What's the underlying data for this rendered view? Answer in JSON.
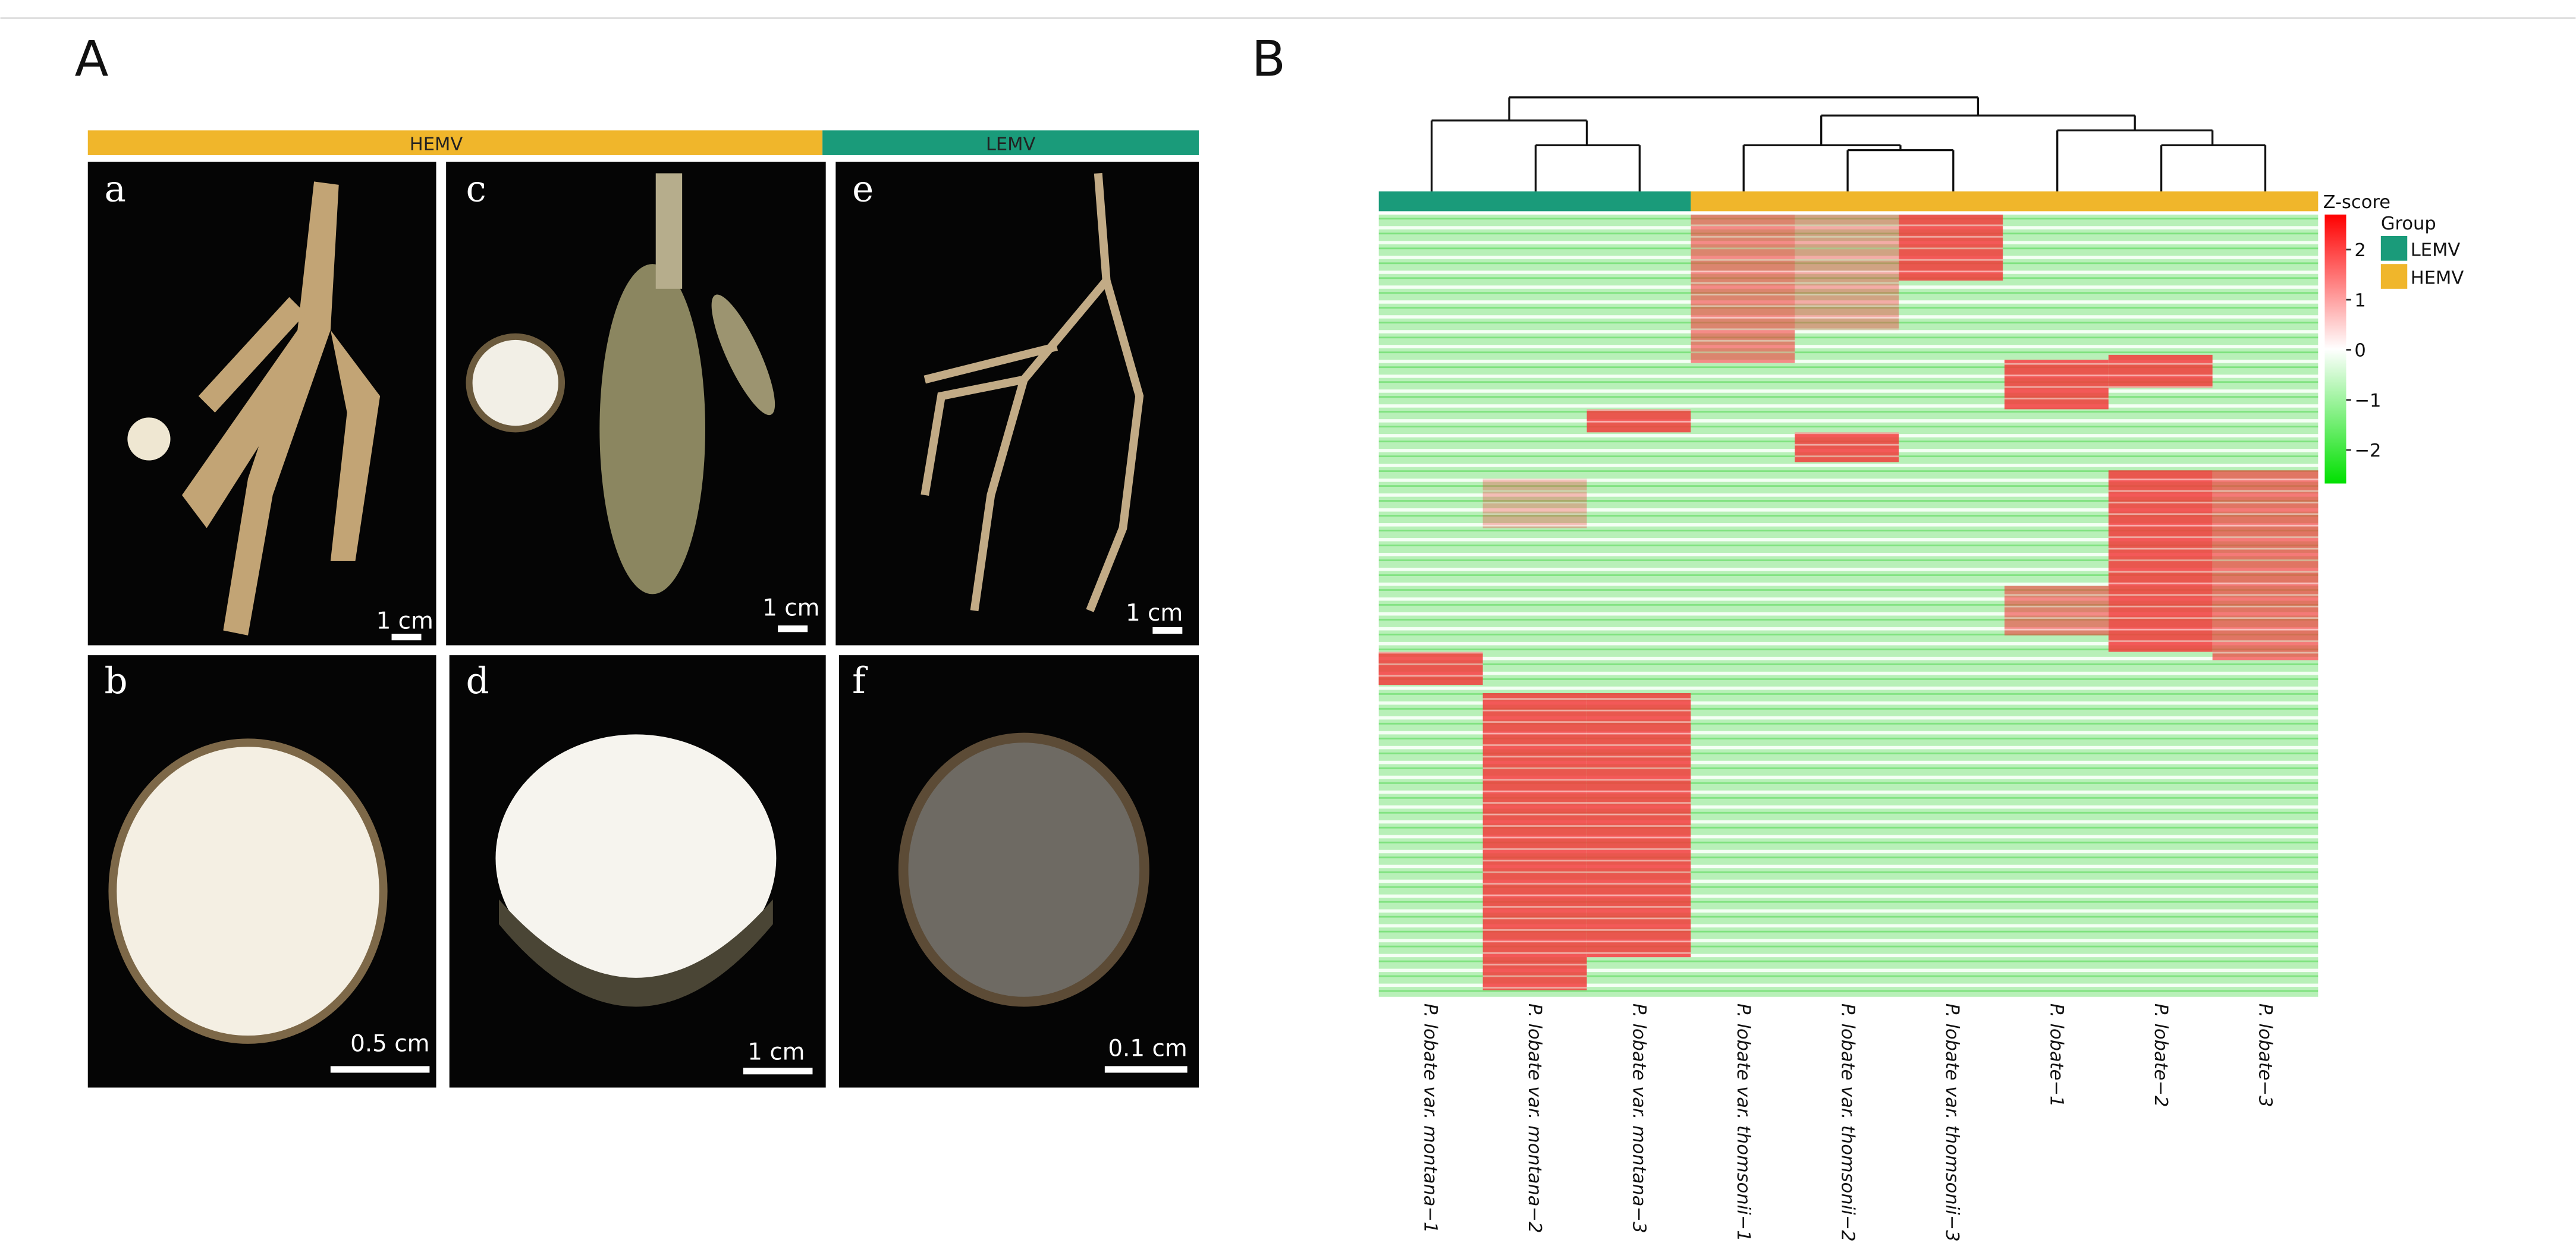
{
  "panel_a": {
    "label": "A",
    "groups": [
      "HEMV",
      "LEMV"
    ],
    "photos": [
      {
        "letter": "a",
        "scale": "1 cm"
      },
      {
        "letter": "c",
        "scale": "1 cm"
      },
      {
        "letter": "e",
        "scale": "1 cm"
      },
      {
        "letter": "b",
        "scale": "0.5 cm"
      },
      {
        "letter": "d",
        "scale": "1 cm"
      },
      {
        "letter": "f",
        "scale": "0.1 cm"
      }
    ]
  },
  "panel_b": {
    "label": "B",
    "colorbar": {
      "title": "Z-score",
      "lim": [
        -2.67,
        2.7
      ],
      "ticks": [
        2,
        1,
        0,
        {
          "value": -1,
          "label": "−1"
        },
        {
          "value": -2,
          "label": "−2"
        }
      ]
    },
    "legend": {
      "title": "Group",
      "items": [
        "LEMV",
        "HEMV"
      ]
    },
    "columns": [
      "P. lobate var. montana−1",
      "P. lobate var. montana−2",
      "P. lobate var. montana−3",
      "P. lobate var. thomsonii−1",
      "P. lobate var. thomsonii−2",
      "P. lobate var. thomsonii−3",
      "P. lobate−1",
      "P. lobate−2",
      "P. lobate−3"
    ]
  }
}
